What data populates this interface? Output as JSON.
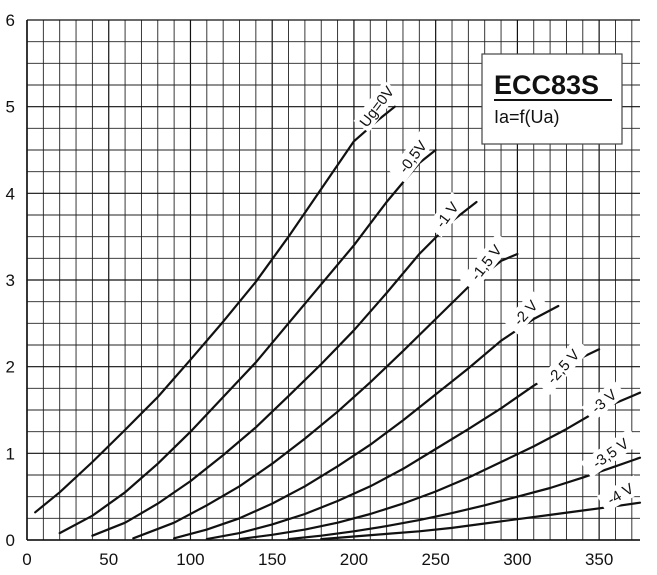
{
  "chart_data": {
    "type": "line",
    "title": "ECC83S",
    "subtitle": "Ia=f(Ua)",
    "xlabel": "",
    "ylabel": "",
    "xlim": [
      0,
      375
    ],
    "ylim": [
      0,
      6
    ],
    "x_major_ticks": [
      0,
      50,
      100,
      150,
      200,
      250,
      300,
      350
    ],
    "x_tick_labels": [
      "0",
      "50",
      "100",
      "150",
      "200",
      "250",
      "300",
      "350"
    ],
    "y_major_ticks": [
      0,
      1,
      2,
      3,
      4,
      5,
      6
    ],
    "y_tick_labels": [
      "0",
      "1",
      "2",
      "3",
      "4",
      "5",
      "6"
    ],
    "grid": true,
    "grid_minor_x_step": 10,
    "grid_minor_y_step": 0.25,
    "series": [
      {
        "name": "Ug=0V",
        "x": [
          5,
          20,
          40,
          60,
          80,
          100,
          120,
          140,
          160,
          180,
          200,
          215,
          225
        ],
        "y": [
          0.32,
          0.55,
          0.9,
          1.27,
          1.65,
          2.08,
          2.52,
          2.98,
          3.5,
          4.05,
          4.6,
          4.85,
          5.0
        ]
      },
      {
        "name": "-0,5V",
        "x": [
          20,
          40,
          60,
          80,
          100,
          120,
          140,
          160,
          180,
          200,
          220,
          240,
          250
        ],
        "y": [
          0.08,
          0.28,
          0.55,
          0.88,
          1.25,
          1.65,
          2.05,
          2.5,
          2.95,
          3.4,
          3.9,
          4.35,
          4.5
        ]
      },
      {
        "name": "-1 V",
        "x": [
          40,
          60,
          80,
          100,
          120,
          140,
          160,
          180,
          200,
          220,
          240,
          260,
          275
        ],
        "y": [
          0.05,
          0.2,
          0.42,
          0.68,
          0.98,
          1.3,
          1.66,
          2.03,
          2.42,
          2.85,
          3.3,
          3.68,
          3.9
        ]
      },
      {
        "name": "-1,5 V",
        "x": [
          65,
          90,
          110,
          130,
          150,
          170,
          190,
          210,
          230,
          250,
          270,
          290,
          300
        ],
        "y": [
          0.02,
          0.2,
          0.4,
          0.62,
          0.88,
          1.17,
          1.48,
          1.82,
          2.18,
          2.55,
          2.92,
          3.22,
          3.3
        ]
      },
      {
        "name": "-2 V",
        "x": [
          90,
          110,
          130,
          150,
          170,
          190,
          210,
          230,
          250,
          270,
          290,
          310,
          325
        ],
        "y": [
          0.02,
          0.12,
          0.25,
          0.42,
          0.62,
          0.85,
          1.1,
          1.38,
          1.68,
          1.98,
          2.3,
          2.55,
          2.7
        ]
      },
      {
        "name": "-2,5 V",
        "x": [
          110,
          130,
          150,
          170,
          190,
          210,
          230,
          250,
          270,
          290,
          310,
          330,
          350
        ],
        "y": [
          0.01,
          0.08,
          0.18,
          0.3,
          0.45,
          0.62,
          0.82,
          1.05,
          1.28,
          1.52,
          1.78,
          2.02,
          2.2
        ]
      },
      {
        "name": "-3 V",
        "x": [
          130,
          150,
          170,
          190,
          210,
          230,
          250,
          270,
          290,
          310,
          330,
          350,
          375
        ],
        "y": [
          0.01,
          0.06,
          0.12,
          0.2,
          0.3,
          0.42,
          0.56,
          0.72,
          0.9,
          1.08,
          1.28,
          1.5,
          1.7
        ]
      },
      {
        "name": "-3,5 V",
        "x": [
          160,
          180,
          200,
          220,
          240,
          260,
          280,
          300,
          320,
          340,
          360,
          375
        ],
        "y": [
          0.01,
          0.05,
          0.1,
          0.16,
          0.23,
          0.31,
          0.4,
          0.5,
          0.6,
          0.72,
          0.85,
          0.95
        ]
      },
      {
        "name": "-4 V",
        "x": [
          180,
          200,
          220,
          240,
          260,
          280,
          300,
          320,
          340,
          360,
          375
        ],
        "y": [
          0.01,
          0.04,
          0.07,
          0.1,
          0.14,
          0.19,
          0.24,
          0.29,
          0.34,
          0.39,
          0.43
        ]
      }
    ],
    "curve_labels": [
      {
        "text": "Ug=0V",
        "x": 214,
        "y": 5.0,
        "angle": -53
      },
      {
        "text": "-0,5V",
        "x": 236,
        "y": 4.42,
        "angle": -53
      },
      {
        "text": "-1 V",
        "x": 257,
        "y": 3.75,
        "angle": -53
      },
      {
        "text": "-1,5 V",
        "x": 281,
        "y": 3.2,
        "angle": -52
      },
      {
        "text": "-2 V",
        "x": 305,
        "y": 2.62,
        "angle": -48
      },
      {
        "text": "-2,5 V",
        "x": 328,
        "y": 2.0,
        "angle": -48
      },
      {
        "text": "-3 V",
        "x": 353,
        "y": 1.6,
        "angle": -40
      },
      {
        "text": "-3,5 V",
        "x": 357,
        "y": 1.0,
        "angle": -35
      },
      {
        "text": "-4 V",
        "x": 363,
        "y": 0.53,
        "angle": -30
      }
    ]
  }
}
